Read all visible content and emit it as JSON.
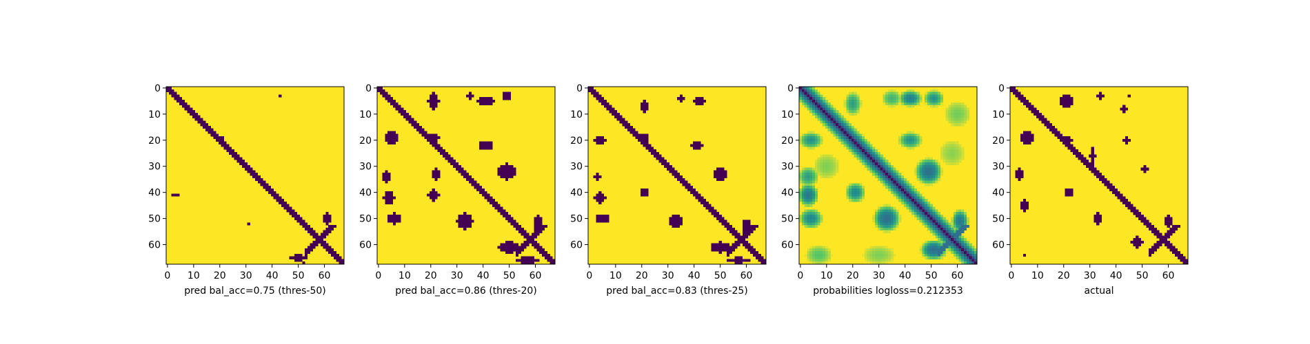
{
  "chart_data": {
    "type": "heatmap",
    "matrix_size": 68,
    "tick_values": [
      0,
      10,
      20,
      30,
      40,
      50,
      60
    ],
    "colors": {
      "low": "#440154",
      "mid_low": "#31688e",
      "mid": "#21918c",
      "mid_high": "#5ec962",
      "high": "#fde725"
    },
    "panels": [
      {
        "id": "pred50",
        "xlabel": "pred bal_acc=0.75 (thres-50)",
        "mode": "binary",
        "band_half_width": 1.4,
        "blobs": [
          {
            "x": 43,
            "y": 3,
            "rx": 0.8,
            "ry": 0.8
          },
          {
            "x": 20,
            "y": 19,
            "rx": 1.0,
            "ry": 0.8
          },
          {
            "x": 3,
            "y": 41,
            "rx": 1.1,
            "ry": 0.7
          },
          {
            "x": 31,
            "y": 52,
            "rx": 0.6,
            "ry": 0.8
          },
          {
            "x": 61,
            "y": 50,
            "rx": 1.5,
            "ry": 2.5
          },
          {
            "x": 50,
            "y": 65,
            "rx": 3.0,
            "ry": 1.2
          },
          {
            "x": 52,
            "y": 67,
            "rx": 0.6,
            "ry": 0.6
          }
        ]
      },
      {
        "id": "pred20",
        "xlabel": "pred bal_acc=0.86 (thres-20)",
        "mode": "binary",
        "band_half_width": 1.7,
        "blobs": [
          {
            "x": 21,
            "y": 5,
            "rx": 2.0,
            "ry": 3.0
          },
          {
            "x": 35,
            "y": 3,
            "rx": 1.3,
            "ry": 1.5
          },
          {
            "x": 41,
            "y": 5,
            "rx": 3.0,
            "ry": 1.8
          },
          {
            "x": 49,
            "y": 3,
            "rx": 1.5,
            "ry": 1.8
          },
          {
            "x": 5,
            "y": 19,
            "rx": 2.5,
            "ry": 2.2
          },
          {
            "x": 21,
            "y": 19,
            "rx": 2.2,
            "ry": 1.5
          },
          {
            "x": 41,
            "y": 22,
            "rx": 2.5,
            "ry": 1.8
          },
          {
            "x": 3,
            "y": 34,
            "rx": 1.5,
            "ry": 2.0
          },
          {
            "x": 4,
            "y": 42,
            "rx": 2.0,
            "ry": 2.5
          },
          {
            "x": 6,
            "y": 50,
            "rx": 2.5,
            "ry": 2.0
          },
          {
            "x": 22,
            "y": 33,
            "rx": 1.2,
            "ry": 2.0
          },
          {
            "x": 21,
            "y": 41,
            "rx": 2.0,
            "ry": 2.0
          },
          {
            "x": 33,
            "y": 51,
            "rx": 3.0,
            "ry": 3.0
          },
          {
            "x": 49,
            "y": 32,
            "rx": 3.5,
            "ry": 3.0
          },
          {
            "x": 61,
            "y": 52,
            "rx": 1.6,
            "ry": 3.0
          },
          {
            "x": 50,
            "y": 61,
            "rx": 4.0,
            "ry": 2.2
          },
          {
            "x": 57,
            "y": 66,
            "rx": 4.5,
            "ry": 1.2
          }
        ]
      },
      {
        "id": "pred25",
        "xlabel": "pred bal_acc=0.83 (thres-25)",
        "mode": "binary",
        "band_half_width": 1.6,
        "blobs": [
          {
            "x": 21,
            "y": 7,
            "rx": 1.5,
            "ry": 2.2
          },
          {
            "x": 35,
            "y": 4,
            "rx": 1.2,
            "ry": 1.3
          },
          {
            "x": 42,
            "y": 5,
            "rx": 2.5,
            "ry": 1.6
          },
          {
            "x": 4,
            "y": 20,
            "rx": 2.2,
            "ry": 1.3
          },
          {
            "x": 21,
            "y": 19,
            "rx": 1.8,
            "ry": 1.3
          },
          {
            "x": 41,
            "y": 22,
            "rx": 2.0,
            "ry": 1.5
          },
          {
            "x": 3,
            "y": 34,
            "rx": 1.2,
            "ry": 1.3
          },
          {
            "x": 4,
            "y": 42,
            "rx": 2.0,
            "ry": 2.0
          },
          {
            "x": 5,
            "y": 50,
            "rx": 2.5,
            "ry": 1.8
          },
          {
            "x": 21,
            "y": 40,
            "rx": 1.6,
            "ry": 1.5
          },
          {
            "x": 33,
            "y": 51,
            "rx": 2.5,
            "ry": 2.5
          },
          {
            "x": 50,
            "y": 33,
            "rx": 2.8,
            "ry": 2.5
          },
          {
            "x": 60,
            "y": 53,
            "rx": 1.5,
            "ry": 2.8
          },
          {
            "x": 50,
            "y": 61,
            "rx": 3.5,
            "ry": 2.0
          },
          {
            "x": 57,
            "y": 66,
            "rx": 4.0,
            "ry": 1.1
          }
        ]
      },
      {
        "id": "prob",
        "xlabel": "probabilities logloss=0.212353",
        "mode": "continuous",
        "band_half_width": 2.2,
        "blobs": [
          {
            "x": 20,
            "y": 6,
            "rx": 2.5,
            "ry": 3.5,
            "v": 0.55
          },
          {
            "x": 35,
            "y": 4,
            "rx": 3.0,
            "ry": 2.5,
            "v": 0.65
          },
          {
            "x": 42,
            "y": 4,
            "rx": 3.5,
            "ry": 2.5,
            "v": 0.4
          },
          {
            "x": 51,
            "y": 4,
            "rx": 3.0,
            "ry": 2.5,
            "v": 0.5
          },
          {
            "x": 4,
            "y": 20,
            "rx": 3.5,
            "ry": 2.5,
            "v": 0.5
          },
          {
            "x": 21,
            "y": 20,
            "rx": 3.0,
            "ry": 2.5,
            "v": 0.45
          },
          {
            "x": 42,
            "y": 20,
            "rx": 3.5,
            "ry": 2.5,
            "v": 0.5
          },
          {
            "x": 3,
            "y": 34,
            "rx": 3.0,
            "ry": 3.0,
            "v": 0.55
          },
          {
            "x": 3,
            "y": 41,
            "rx": 3.0,
            "ry": 3.5,
            "v": 0.35
          },
          {
            "x": 4,
            "y": 50,
            "rx": 3.5,
            "ry": 3.0,
            "v": 0.45
          },
          {
            "x": 21,
            "y": 40,
            "rx": 3.0,
            "ry": 3.0,
            "v": 0.45
          },
          {
            "x": 33,
            "y": 50,
            "rx": 4.0,
            "ry": 4.0,
            "v": 0.3
          },
          {
            "x": 49,
            "y": 32,
            "rx": 4.0,
            "ry": 4.0,
            "v": 0.3
          },
          {
            "x": 61,
            "y": 51,
            "rx": 2.5,
            "ry": 3.5,
            "v": 0.35
          },
          {
            "x": 51,
            "y": 62,
            "rx": 4.0,
            "ry": 3.0,
            "v": 0.3
          },
          {
            "x": 7,
            "y": 64,
            "rx": 4.0,
            "ry": 3.0,
            "v": 0.72
          },
          {
            "x": 30,
            "y": 64,
            "rx": 5.0,
            "ry": 3.0,
            "v": 0.8
          },
          {
            "x": 60,
            "y": 10,
            "rx": 4.0,
            "ry": 4.0,
            "v": 0.78
          },
          {
            "x": 58,
            "y": 25,
            "rx": 4.0,
            "ry": 4.0,
            "v": 0.82
          },
          {
            "x": 10,
            "y": 30,
            "rx": 4.0,
            "ry": 4.0,
            "v": 0.8
          }
        ]
      },
      {
        "id": "actual",
        "xlabel": "actual",
        "mode": "binary",
        "band_half_width": 1.4,
        "blobs": [
          {
            "x": 21,
            "y": 5,
            "rx": 2.5,
            "ry": 2.5
          },
          {
            "x": 34,
            "y": 3,
            "rx": 1.2,
            "ry": 1.5
          },
          {
            "x": 43,
            "y": 8,
            "rx": 1.5,
            "ry": 1.3
          },
          {
            "x": 45,
            "y": 3,
            "rx": 0.8,
            "ry": 0.8
          },
          {
            "x": 6,
            "y": 19,
            "rx": 2.5,
            "ry": 2.5
          },
          {
            "x": 21,
            "y": 20,
            "rx": 2.0,
            "ry": 1.2
          },
          {
            "x": 44,
            "y": 20,
            "rx": 1.5,
            "ry": 1.2
          },
          {
            "x": 3,
            "y": 33,
            "rx": 1.5,
            "ry": 2.5
          },
          {
            "x": 5,
            "y": 45,
            "rx": 1.5,
            "ry": 2.0
          },
          {
            "x": 22,
            "y": 40,
            "rx": 1.5,
            "ry": 1.8
          },
          {
            "x": 31,
            "y": 26,
            "rx": 1.0,
            "ry": 3.0
          },
          {
            "x": 33,
            "y": 50,
            "rx": 1.8,
            "ry": 2.0
          },
          {
            "x": 51,
            "y": 31,
            "rx": 1.2,
            "ry": 1.2
          },
          {
            "x": 60,
            "y": 51,
            "rx": 1.5,
            "ry": 2.5
          },
          {
            "x": 48,
            "y": 59,
            "rx": 2.0,
            "ry": 2.2
          },
          {
            "x": 5,
            "y": 64,
            "rx": 0.6,
            "ry": 0.7
          }
        ]
      }
    ]
  }
}
